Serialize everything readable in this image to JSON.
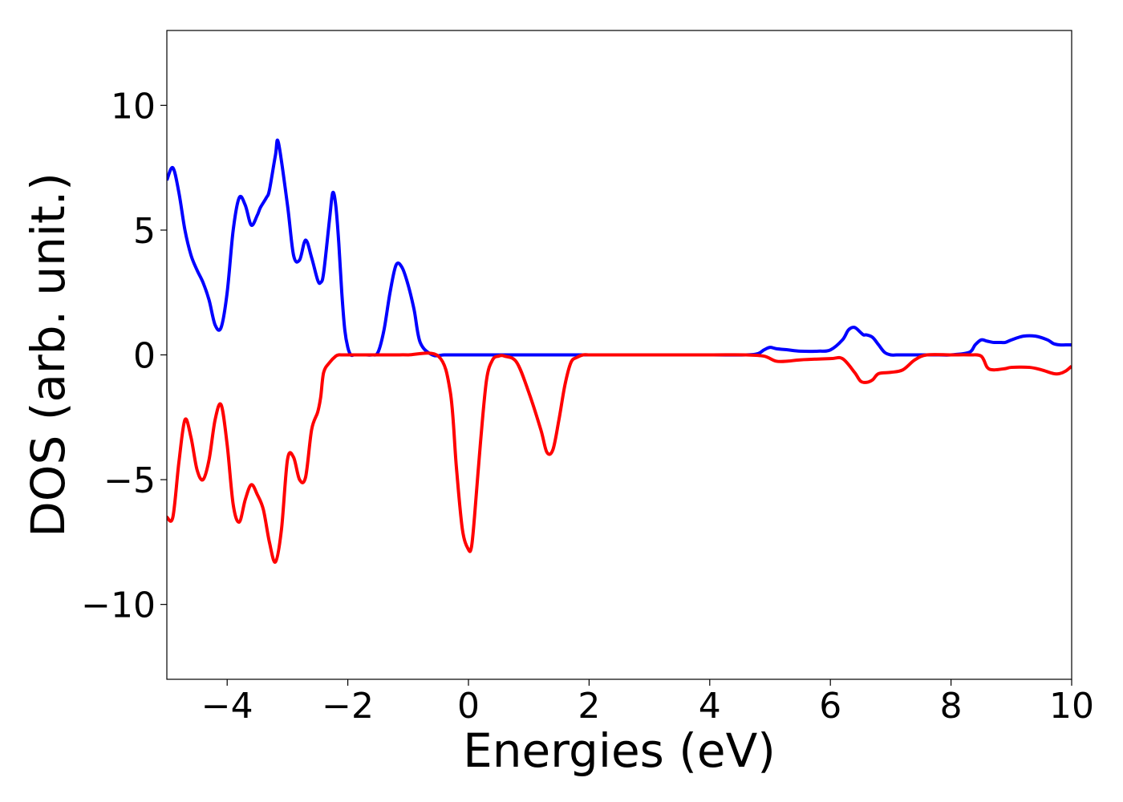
{
  "chart_data": {
    "type": "line",
    "title": "",
    "xlabel": "Energies (eV)",
    "ylabel": "DOS (arb. unit.)",
    "xlim": [
      -5,
      10
    ],
    "ylim": [
      -13,
      13
    ],
    "xticks": [
      -4,
      -2,
      0,
      2,
      4,
      6,
      8,
      10
    ],
    "xtick_labels": [
      "−4",
      "−2",
      "0",
      "2",
      "4",
      "6",
      "8",
      "10"
    ],
    "yticks": [
      -10,
      -5,
      0,
      5,
      10
    ],
    "ytick_labels": [
      "−10",
      "−5",
      "0",
      "5",
      "10"
    ],
    "grid": false,
    "legend": "none",
    "series": [
      {
        "color": "#0000ff",
        "x": [
          -5.0,
          -4.9,
          -4.8,
          -4.7,
          -4.6,
          -4.5,
          -4.4,
          -4.3,
          -4.2,
          -4.1,
          -4.0,
          -3.9,
          -3.8,
          -3.7,
          -3.6,
          -3.5,
          -3.45,
          -3.35,
          -3.3,
          -3.2,
          -3.15,
          -3.0,
          -2.9,
          -2.8,
          -2.7,
          -2.6,
          -2.5,
          -2.45,
          -2.4,
          -2.3,
          -2.25,
          -2.2,
          -2.15,
          -2.1,
          -2.05,
          -2.0,
          -1.95,
          -1.9,
          -1.85,
          -1.8,
          -1.7,
          -1.6,
          -1.5,
          -1.4,
          -1.3,
          -1.2,
          -1.1,
          -1.0,
          -0.9,
          -0.8,
          -0.6,
          -0.4,
          -0.2,
          0.0,
          0.1,
          0.2,
          0.3,
          0.4,
          0.5,
          0.6,
          0.7,
          0.8,
          0.9,
          1.0,
          1.1,
          1.2,
          1.5,
          2.0,
          3.0,
          4.0,
          4.6,
          4.8,
          4.9,
          5.0,
          5.1,
          5.3,
          5.5,
          5.8,
          6.0,
          6.2,
          6.3,
          6.4,
          6.5,
          6.55,
          6.6,
          6.7,
          6.8,
          6.9,
          7.0,
          7.1,
          7.2,
          7.3,
          7.5,
          7.8,
          8.0,
          8.3,
          8.4,
          8.5,
          8.6,
          8.7,
          8.8,
          8.9,
          9.0,
          9.2,
          9.4,
          9.6,
          9.7,
          9.8,
          9.9,
          10.0
        ],
        "y": [
          7.0,
          7.5,
          6.5,
          5.0,
          4.0,
          3.4,
          2.9,
          2.2,
          1.2,
          1.1,
          2.5,
          5.0,
          6.3,
          6.0,
          5.2,
          5.6,
          5.9,
          6.3,
          6.6,
          8.0,
          8.5,
          6.0,
          4.0,
          3.8,
          4.6,
          3.9,
          3.0,
          2.9,
          3.3,
          5.5,
          6.5,
          6.0,
          4.5,
          2.5,
          1.0,
          0.3,
          0.0,
          0.0,
          0.0,
          0.0,
          0.0,
          0.0,
          0.1,
          1.0,
          2.5,
          3.6,
          3.5,
          2.8,
          1.8,
          0.5,
          0.0,
          0.0,
          0.0,
          0.0,
          0.0,
          0.0,
          0.0,
          0.0,
          0.0,
          0.0,
          0.0,
          0.0,
          0.0,
          0.0,
          0.0,
          0.0,
          0.0,
          0.0,
          0.0,
          0.0,
          0.0,
          0.05,
          0.2,
          0.3,
          0.25,
          0.2,
          0.15,
          0.15,
          0.2,
          0.6,
          1.0,
          1.1,
          0.9,
          0.8,
          0.8,
          0.7,
          0.4,
          0.1,
          0.0,
          0.0,
          0.0,
          0.0,
          0.0,
          0.0,
          0.0,
          0.1,
          0.4,
          0.6,
          0.55,
          0.5,
          0.5,
          0.5,
          0.6,
          0.75,
          0.75,
          0.6,
          0.45,
          0.4,
          0.4,
          0.4
        ]
      },
      {
        "color": "#ff0000",
        "x": [
          -5.0,
          -4.9,
          -4.8,
          -4.7,
          -4.6,
          -4.5,
          -4.4,
          -4.3,
          -4.2,
          -4.1,
          -4.0,
          -3.9,
          -3.8,
          -3.7,
          -3.6,
          -3.5,
          -3.4,
          -3.3,
          -3.2,
          -3.1,
          -3.0,
          -2.9,
          -2.8,
          -2.7,
          -2.6,
          -2.5,
          -2.45,
          -2.4,
          -2.3,
          -2.2,
          -2.15,
          -2.1,
          -2.05,
          -2.0,
          -1.9,
          -1.8,
          -1.7,
          -1.6,
          -1.5,
          -1.4,
          -1.2,
          -1.0,
          -0.5,
          -0.3,
          -0.2,
          -0.1,
          0.0,
          0.05,
          0.1,
          0.2,
          0.3,
          0.4,
          0.5,
          0.6,
          0.8,
          1.0,
          1.2,
          1.3,
          1.4,
          1.5,
          1.6,
          1.7,
          1.8,
          1.9,
          2.0,
          2.1,
          2.2,
          2.5,
          3.0,
          4.0,
          4.6,
          4.9,
          5.1,
          5.3,
          5.5,
          6.0,
          6.2,
          6.4,
          6.5,
          6.6,
          6.7,
          6.8,
          7.0,
          7.2,
          7.4,
          7.6,
          8.0,
          8.3,
          8.5,
          8.6,
          8.7,
          8.9,
          9.0,
          9.3,
          9.5,
          9.7,
          9.8,
          9.9,
          10.0
        ],
        "y": [
          -6.5,
          -6.5,
          -4.3,
          -2.6,
          -3.3,
          -4.6,
          -5.0,
          -4.2,
          -2.6,
          -2.0,
          -3.6,
          -6.0,
          -6.7,
          -5.8,
          -5.2,
          -5.6,
          -6.2,
          -7.5,
          -8.3,
          -7.0,
          -4.2,
          -4.1,
          -5.0,
          -4.9,
          -3.0,
          -2.3,
          -1.7,
          -0.7,
          -0.3,
          -0.05,
          0.0,
          0.0,
          0.0,
          0.0,
          0.0,
          0.0,
          0.0,
          0.0,
          0.0,
          0.0,
          0.0,
          0.0,
          -0.05,
          -1.5,
          -4.5,
          -7.0,
          -7.8,
          -7.7,
          -6.5,
          -3.5,
          -1.0,
          -0.2,
          -0.05,
          -0.05,
          -0.3,
          -1.5,
          -3.0,
          -3.9,
          -3.8,
          -2.6,
          -1.2,
          -0.3,
          -0.1,
          0.0,
          0.0,
          0.0,
          0.0,
          0.0,
          0.0,
          0.0,
          0.0,
          -0.05,
          -0.25,
          -0.25,
          -0.2,
          -0.15,
          -0.15,
          -0.7,
          -1.05,
          -1.1,
          -1.0,
          -0.75,
          -0.7,
          -0.6,
          -0.2,
          0.0,
          0.0,
          0.0,
          -0.05,
          -0.5,
          -0.6,
          -0.55,
          -0.5,
          -0.5,
          -0.6,
          -0.75,
          -0.75,
          -0.65,
          -0.45
        ]
      }
    ]
  }
}
